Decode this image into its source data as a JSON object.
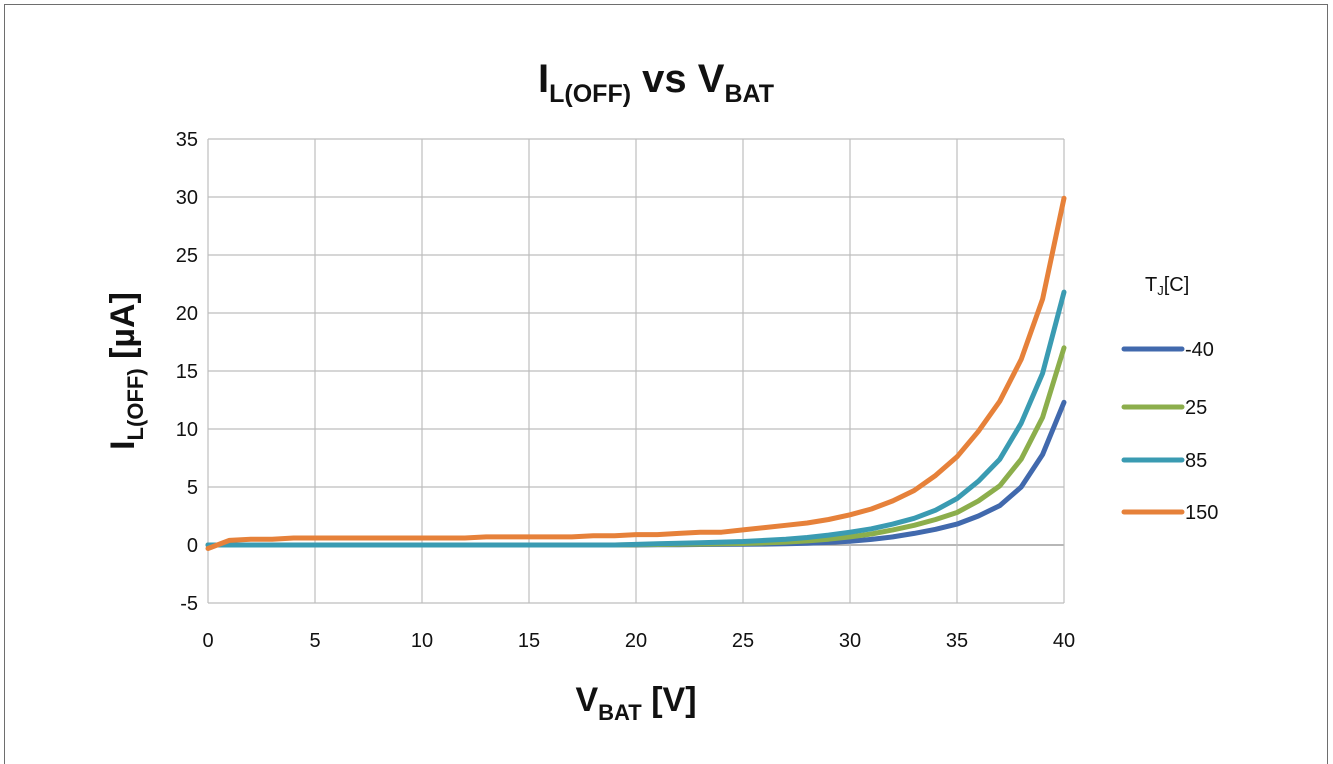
{
  "chart_data": {
    "type": "line",
    "title": {
      "main": "I",
      "main_sub": "L(OFF)",
      "mid": " vs V",
      "end_sub": "BAT"
    },
    "xlabel": {
      "main": "V",
      "sub": "BAT",
      "unit": " [V]"
    },
    "ylabel": {
      "main": "I",
      "sub": "L(OFF)",
      "unit": " [µA]"
    },
    "xlim": [
      0,
      40
    ],
    "ylim": [
      -5,
      35
    ],
    "x_ticks": [
      0,
      5,
      10,
      15,
      20,
      25,
      30,
      35,
      40
    ],
    "y_ticks": [
      -5,
      0,
      5,
      10,
      15,
      20,
      25,
      30,
      35
    ],
    "grid": true,
    "legend": {
      "title_main": "T",
      "title_sub": "J",
      "title_rest": "[C]",
      "placement": "right"
    },
    "x": [
      0,
      1,
      2,
      3,
      4,
      5,
      6,
      7,
      8,
      9,
      10,
      11,
      12,
      13,
      14,
      15,
      16,
      17,
      18,
      19,
      20,
      21,
      22,
      23,
      24,
      25,
      26,
      27,
      28,
      29,
      30,
      31,
      32,
      33,
      34,
      35,
      36,
      37,
      38,
      39,
      40
    ],
    "series": [
      {
        "name": "-40",
        "color": "#4169ad",
        "values": [
          0,
          0,
          0,
          0,
          0,
          0,
          0,
          0,
          0,
          0,
          0,
          0,
          0,
          0,
          0,
          0,
          0,
          0,
          0,
          0,
          0,
          0.02,
          0.03,
          0.04,
          0.05,
          0.06,
          0.08,
          0.1,
          0.15,
          0.22,
          0.32,
          0.48,
          0.7,
          1.0,
          1.35,
          1.8,
          2.5,
          3.4,
          5.0,
          7.8,
          12.3
        ]
      },
      {
        "name": "25",
        "color": "#8cae4c",
        "values": [
          0,
          0,
          0,
          0,
          0,
          0,
          0,
          0,
          0,
          0,
          0,
          0,
          0,
          0,
          0,
          0,
          0,
          0,
          0,
          0,
          0.02,
          0.04,
          0.06,
          0.08,
          0.1,
          0.13,
          0.18,
          0.25,
          0.35,
          0.5,
          0.7,
          0.95,
          1.3,
          1.7,
          2.2,
          2.8,
          3.8,
          5.1,
          7.4,
          11.0,
          17.0
        ]
      },
      {
        "name": "85",
        "color": "#3a9bb2",
        "values": [
          0,
          0,
          0,
          0,
          0,
          0,
          0,
          0,
          0,
          0,
          0,
          0,
          0,
          0,
          0,
          0,
          0,
          0,
          0,
          0,
          0.05,
          0.1,
          0.15,
          0.2,
          0.25,
          0.3,
          0.4,
          0.5,
          0.65,
          0.85,
          1.1,
          1.4,
          1.8,
          2.3,
          3.0,
          4.0,
          5.5,
          7.4,
          10.5,
          14.8,
          21.8
        ]
      },
      {
        "name": "150",
        "color": "#e6813a",
        "values": [
          -0.3,
          0.4,
          0.5,
          0.5,
          0.6,
          0.6,
          0.6,
          0.6,
          0.6,
          0.6,
          0.6,
          0.6,
          0.6,
          0.7,
          0.7,
          0.7,
          0.7,
          0.7,
          0.8,
          0.8,
          0.9,
          0.9,
          1.0,
          1.1,
          1.1,
          1.3,
          1.5,
          1.7,
          1.9,
          2.2,
          2.6,
          3.1,
          3.8,
          4.7,
          6.0,
          7.6,
          9.8,
          12.4,
          16.0,
          21.2,
          29.9
        ]
      }
    ]
  }
}
